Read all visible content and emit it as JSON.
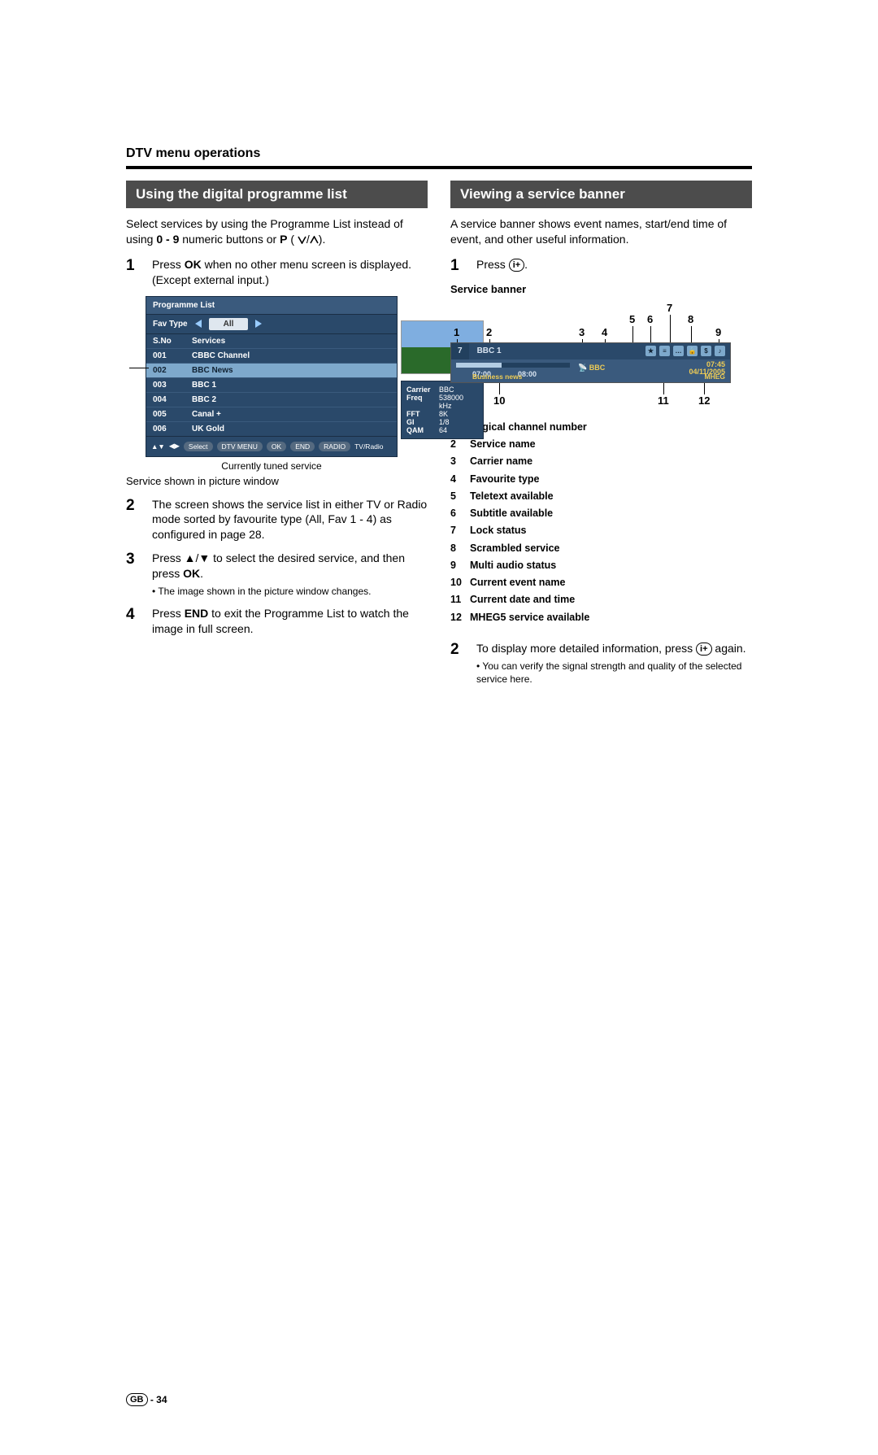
{
  "header": "DTV menu operations",
  "left": {
    "title": "Using the digital programme list",
    "intro": "Select services by using the Programme List instead of using 0 - 9 numeric buttons or P (∨/∧).",
    "step1": "Press OK when no other menu screen is displayed. (Except external input.)",
    "caption_tuned": "Currently tuned service",
    "caption_picture": "Service shown in picture window",
    "step2": "The screen shows the service list in either TV or Radio mode sorted by favourite type (All, Fav 1 - 4) as configured in page 28.",
    "step3": "Press ▲/▼ to select the desired service, and then press OK.",
    "step3_bullet": "• The image shown in the picture window changes.",
    "step4": "Press END to exit the Programme List to watch the image in full screen."
  },
  "programme_list": {
    "title": "Programme List",
    "fav_label": "Fav Type",
    "fav_value": "All",
    "head_sno": "S.No",
    "head_services": "Services",
    "rows": [
      {
        "n": "001",
        "s": "CBBC Channel"
      },
      {
        "n": "002",
        "s": "BBC News"
      },
      {
        "n": "003",
        "s": "BBC 1"
      },
      {
        "n": "004",
        "s": "BBC 2"
      },
      {
        "n": "005",
        "s": "Canal +"
      },
      {
        "n": "006",
        "s": "UK Gold"
      }
    ],
    "info": [
      {
        "k": "Carrier",
        "v": "BBC"
      },
      {
        "k": "Freq",
        "v": "538000 kHz"
      },
      {
        "k": "FFT",
        "v": "8K"
      },
      {
        "k": "GI",
        "v": "1/8"
      },
      {
        "k": "QAM",
        "v": "64"
      }
    ],
    "bottom": [
      "▲▼",
      "◀▶",
      "Select",
      "DTV MENU",
      "OK",
      "END",
      "RADIO",
      "TV/Radio"
    ]
  },
  "right": {
    "title": "Viewing a service banner",
    "intro": "A service banner shows event names, start/end time of event, and other useful information.",
    "step1_pre": "Press ",
    "step1_btn": "i+",
    "step1_post": ".",
    "subhead": "Service banner",
    "legend": [
      {
        "n": "1",
        "t": "Logical channel number"
      },
      {
        "n": "2",
        "t": "Service name"
      },
      {
        "n": "3",
        "t": "Carrier name"
      },
      {
        "n": "4",
        "t": "Favourite type"
      },
      {
        "n": "5",
        "t": "Teletext available"
      },
      {
        "n": "6",
        "t": "Subtitle available"
      },
      {
        "n": "7",
        "t": "Lock status"
      },
      {
        "n": "8",
        "t": "Scrambled service"
      },
      {
        "n": "9",
        "t": "Multi audio status"
      },
      {
        "n": "10",
        "t": "Current event name"
      },
      {
        "n": "11",
        "t": "Current date and time"
      },
      {
        "n": "12",
        "t": "MHEG5 service available"
      }
    ],
    "step2_pre": "To display more detailed information, press ",
    "step2_btn": "i+",
    "step2_post": " again.",
    "step2_bullet": "• You can verify the signal strength and quality of the selected service here."
  },
  "banner": {
    "channel": "7",
    "service": "BBC 1",
    "carrier": "BBC",
    "t1": "07:00",
    "t2": "08:00",
    "time": "07:45",
    "date": "04/11/2005",
    "event": "Business news",
    "mheg": "MHEG",
    "nums_top": [
      "1",
      "2",
      "3",
      "4",
      "5",
      "6",
      "7",
      "8",
      "9"
    ],
    "nums_bot": [
      "10",
      "11",
      "12"
    ]
  },
  "footer_region": "GB",
  "footer_page": " - 34"
}
